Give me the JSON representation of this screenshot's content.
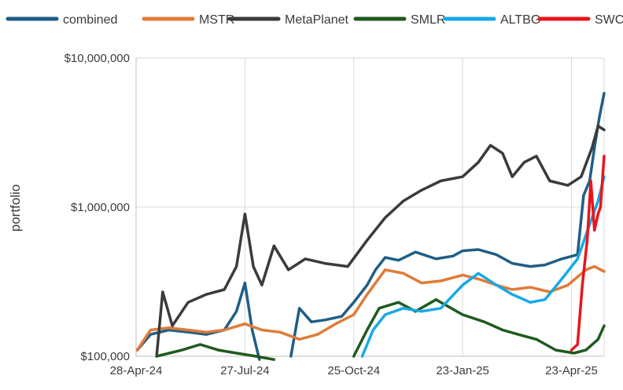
{
  "chart_data": {
    "type": "line",
    "title": "",
    "xlabel": "",
    "ylabel": "portfolio",
    "yscale": "log",
    "ylim": [
      100000,
      10000000
    ],
    "y_ticks": [
      100000,
      1000000,
      10000000
    ],
    "y_tick_labels": [
      "$100,000",
      "$1,000,000",
      "$10,000,000"
    ],
    "xlim": [
      "2024-04-28",
      "2025-05-20"
    ],
    "x_ticks": [
      "2024-04-28",
      "2024-07-27",
      "2024-10-25",
      "2025-01-23",
      "2025-04-23"
    ],
    "x_tick_labels": [
      "28-Apr-24",
      "27-Jul-24",
      "25-Oct-24",
      "23-Jan-25",
      "23-Apr-25"
    ],
    "grid": "vertical",
    "legend_position": "top",
    "series": [
      {
        "name": "combined",
        "color": "#1f5e86",
        "points": [
          [
            "2024-04-29",
            110000
          ],
          [
            "2024-05-10",
            140000
          ],
          [
            "2024-05-25",
            150000
          ],
          [
            "2024-06-10",
            145000
          ],
          [
            "2024-06-25",
            140000
          ],
          [
            "2024-07-10",
            150000
          ],
          [
            "2024-07-20",
            200000
          ],
          [
            "2024-07-27",
            310000
          ],
          [
            "2024-08-02",
            150000
          ],
          [
            "2024-08-08",
            95000
          ]
        ]
      },
      {
        "name": "combined",
        "color": "#1f5e86",
        "points": [
          [
            "2024-09-03",
            100000
          ],
          [
            "2024-09-10",
            210000
          ],
          [
            "2024-09-20",
            170000
          ],
          [
            "2024-10-01",
            175000
          ],
          [
            "2024-10-15",
            185000
          ],
          [
            "2024-10-25",
            230000
          ],
          [
            "2024-11-05",
            300000
          ],
          [
            "2024-11-12",
            380000
          ],
          [
            "2024-11-20",
            460000
          ],
          [
            "2024-12-01",
            440000
          ],
          [
            "2024-12-15",
            500000
          ],
          [
            "2025-01-01",
            450000
          ],
          [
            "2025-01-15",
            470000
          ],
          [
            "2025-01-23",
            510000
          ],
          [
            "2025-02-05",
            520000
          ],
          [
            "2025-02-20",
            480000
          ],
          [
            "2025-03-05",
            420000
          ],
          [
            "2025-03-20",
            400000
          ],
          [
            "2025-04-01",
            410000
          ],
          [
            "2025-04-15",
            450000
          ],
          [
            "2025-04-28",
            480000
          ],
          [
            "2025-05-03",
            1200000
          ],
          [
            "2025-05-08",
            1500000
          ],
          [
            "2025-05-12",
            2500000
          ],
          [
            "2025-05-16",
            4000000
          ],
          [
            "2025-05-20",
            5800000
          ]
        ]
      },
      {
        "name": "MSTR",
        "color": "#e07b39",
        "points": [
          [
            "2024-04-29",
            110000
          ],
          [
            "2024-05-10",
            150000
          ],
          [
            "2024-05-25",
            155000
          ],
          [
            "2024-06-10",
            150000
          ],
          [
            "2024-06-25",
            145000
          ],
          [
            "2024-07-10",
            150000
          ],
          [
            "2024-07-27",
            165000
          ],
          [
            "2024-08-10",
            150000
          ],
          [
            "2024-08-25",
            145000
          ],
          [
            "2024-09-10",
            130000
          ],
          [
            "2024-09-25",
            140000
          ],
          [
            "2024-10-10",
            165000
          ],
          [
            "2024-10-25",
            190000
          ],
          [
            "2024-11-05",
            260000
          ],
          [
            "2024-11-20",
            380000
          ],
          [
            "2024-12-05",
            360000
          ],
          [
            "2024-12-20",
            310000
          ],
          [
            "2025-01-05",
            320000
          ],
          [
            "2025-01-23",
            350000
          ],
          [
            "2025-02-05",
            330000
          ],
          [
            "2025-02-20",
            300000
          ],
          [
            "2025-03-05",
            280000
          ],
          [
            "2025-03-20",
            290000
          ],
          [
            "2025-04-05",
            270000
          ],
          [
            "2025-04-20",
            300000
          ],
          [
            "2025-05-05",
            380000
          ],
          [
            "2025-05-12",
            400000
          ],
          [
            "2025-05-20",
            370000
          ]
        ]
      },
      {
        "name": "MetaPlanet",
        "color": "#3b3b3b",
        "points": [
          [
            "2024-05-15",
            100000
          ],
          [
            "2024-05-20",
            270000
          ],
          [
            "2024-05-28",
            160000
          ],
          [
            "2024-06-10",
            230000
          ],
          [
            "2024-06-25",
            260000
          ],
          [
            "2024-07-10",
            280000
          ],
          [
            "2024-07-20",
            400000
          ],
          [
            "2024-07-27",
            900000
          ],
          [
            "2024-08-03",
            400000
          ],
          [
            "2024-08-10",
            300000
          ],
          [
            "2024-08-20",
            550000
          ],
          [
            "2024-09-01",
            380000
          ],
          [
            "2024-09-15",
            450000
          ],
          [
            "2024-10-01",
            420000
          ],
          [
            "2024-10-20",
            400000
          ],
          [
            "2024-11-05",
            600000
          ],
          [
            "2024-11-20",
            850000
          ],
          [
            "2024-12-05",
            1100000
          ],
          [
            "2024-12-20",
            1300000
          ],
          [
            "2025-01-05",
            1500000
          ],
          [
            "2025-01-23",
            1600000
          ],
          [
            "2025-02-05",
            2000000
          ],
          [
            "2025-02-15",
            2600000
          ],
          [
            "2025-02-25",
            2300000
          ],
          [
            "2025-03-05",
            1600000
          ],
          [
            "2025-03-15",
            2000000
          ],
          [
            "2025-03-25",
            2200000
          ],
          [
            "2025-04-05",
            1500000
          ],
          [
            "2025-04-20",
            1400000
          ],
          [
            "2025-05-01",
            1600000
          ],
          [
            "2025-05-10",
            2500000
          ],
          [
            "2025-05-15",
            3500000
          ],
          [
            "2025-05-20",
            3300000
          ]
        ]
      },
      {
        "name": "SMLR",
        "color": "#1e5a1e",
        "points": [
          [
            "2024-05-15",
            100000
          ],
          [
            "2024-06-05",
            110000
          ],
          [
            "2024-06-20",
            120000
          ],
          [
            "2024-07-05",
            110000
          ],
          [
            "2024-07-20",
            105000
          ],
          [
            "2024-08-05",
            100000
          ],
          [
            "2024-08-20",
            95000
          ]
        ]
      },
      {
        "name": "SMLR",
        "color": "#1e5a1e",
        "points": [
          [
            "2024-10-25",
            100000
          ],
          [
            "2024-11-05",
            150000
          ],
          [
            "2024-11-15",
            210000
          ],
          [
            "2024-12-01",
            230000
          ],
          [
            "2024-12-15",
            200000
          ],
          [
            "2025-01-01",
            240000
          ],
          [
            "2025-01-23",
            190000
          ],
          [
            "2025-02-10",
            170000
          ],
          [
            "2025-02-25",
            150000
          ],
          [
            "2025-03-10",
            140000
          ],
          [
            "2025-03-25",
            130000
          ],
          [
            "2025-04-10",
            110000
          ],
          [
            "2025-04-25",
            105000
          ],
          [
            "2025-05-05",
            110000
          ],
          [
            "2025-05-15",
            130000
          ],
          [
            "2025-05-20",
            160000
          ]
        ]
      },
      {
        "name": "ALTBG",
        "color": "#18a9e6",
        "points": [
          [
            "2024-11-01",
            100000
          ],
          [
            "2024-11-10",
            150000
          ],
          [
            "2024-11-20",
            190000
          ],
          [
            "2024-12-05",
            210000
          ],
          [
            "2024-12-20",
            200000
          ],
          [
            "2025-01-05",
            210000
          ],
          [
            "2025-01-23",
            300000
          ],
          [
            "2025-02-05",
            360000
          ],
          [
            "2025-02-20",
            300000
          ],
          [
            "2025-03-05",
            260000
          ],
          [
            "2025-03-20",
            230000
          ],
          [
            "2025-04-01",
            240000
          ],
          [
            "2025-04-15",
            330000
          ],
          [
            "2025-04-28",
            450000
          ],
          [
            "2025-05-05",
            650000
          ],
          [
            "2025-05-10",
            850000
          ],
          [
            "2025-05-15",
            1100000
          ],
          [
            "2025-05-20",
            1600000
          ]
        ]
      },
      {
        "name": "SWC",
        "color": "#e8161c",
        "points": [
          [
            "2025-04-23",
            110000
          ],
          [
            "2025-04-28",
            120000
          ],
          [
            "2025-05-02",
            300000
          ],
          [
            "2025-05-06",
            600000
          ],
          [
            "2025-05-09",
            1500000
          ],
          [
            "2025-05-12",
            700000
          ],
          [
            "2025-05-15",
            900000
          ],
          [
            "2025-05-17",
            1000000
          ],
          [
            "2025-05-20",
            2200000
          ]
        ]
      }
    ],
    "legend": [
      {
        "name": "combined",
        "color": "#1f5e86"
      },
      {
        "name": "MSTR",
        "color": "#e07b39"
      },
      {
        "name": "MetaPlanet",
        "color": "#3b3b3b"
      },
      {
        "name": "SMLR",
        "color": "#1e5a1e"
      },
      {
        "name": "ALTBG",
        "color": "#18a9e6"
      },
      {
        "name": "SWC",
        "color": "#e8161c"
      }
    ]
  }
}
